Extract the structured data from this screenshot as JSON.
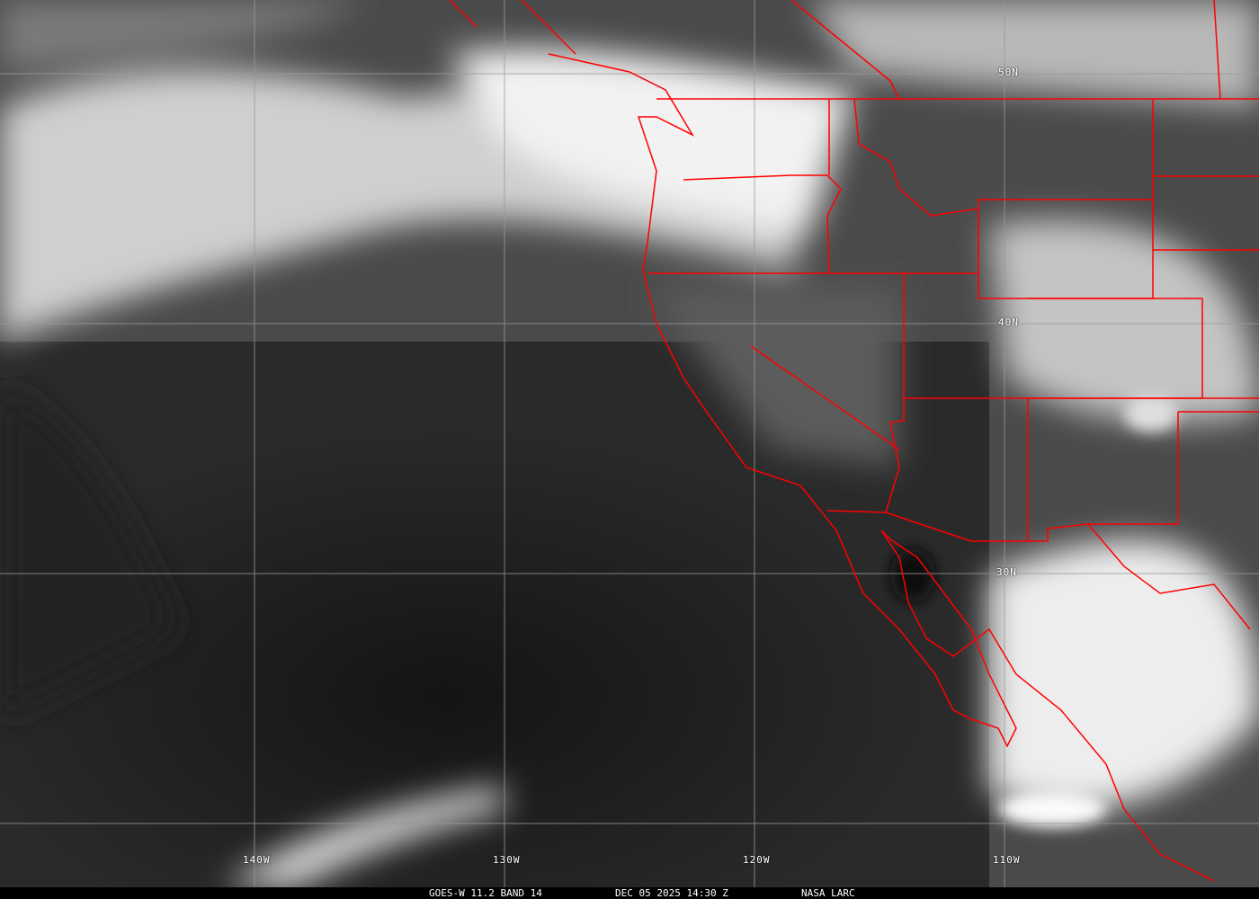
{
  "caption": {
    "satellite_band": "GOES-W 11.2 BAND 14",
    "datetime": "DEC 05 2025 14:30 Z",
    "source": "NASA LARC"
  },
  "grid": {
    "latitude_labels": [
      "50N",
      "40N",
      "30N"
    ],
    "longitude_labels": [
      "140W",
      "130W",
      "120W",
      "110W"
    ]
  },
  "colors": {
    "boundaries": "#ff0000",
    "grid": "#9a9a9a",
    "caption_bg": "#000000"
  }
}
